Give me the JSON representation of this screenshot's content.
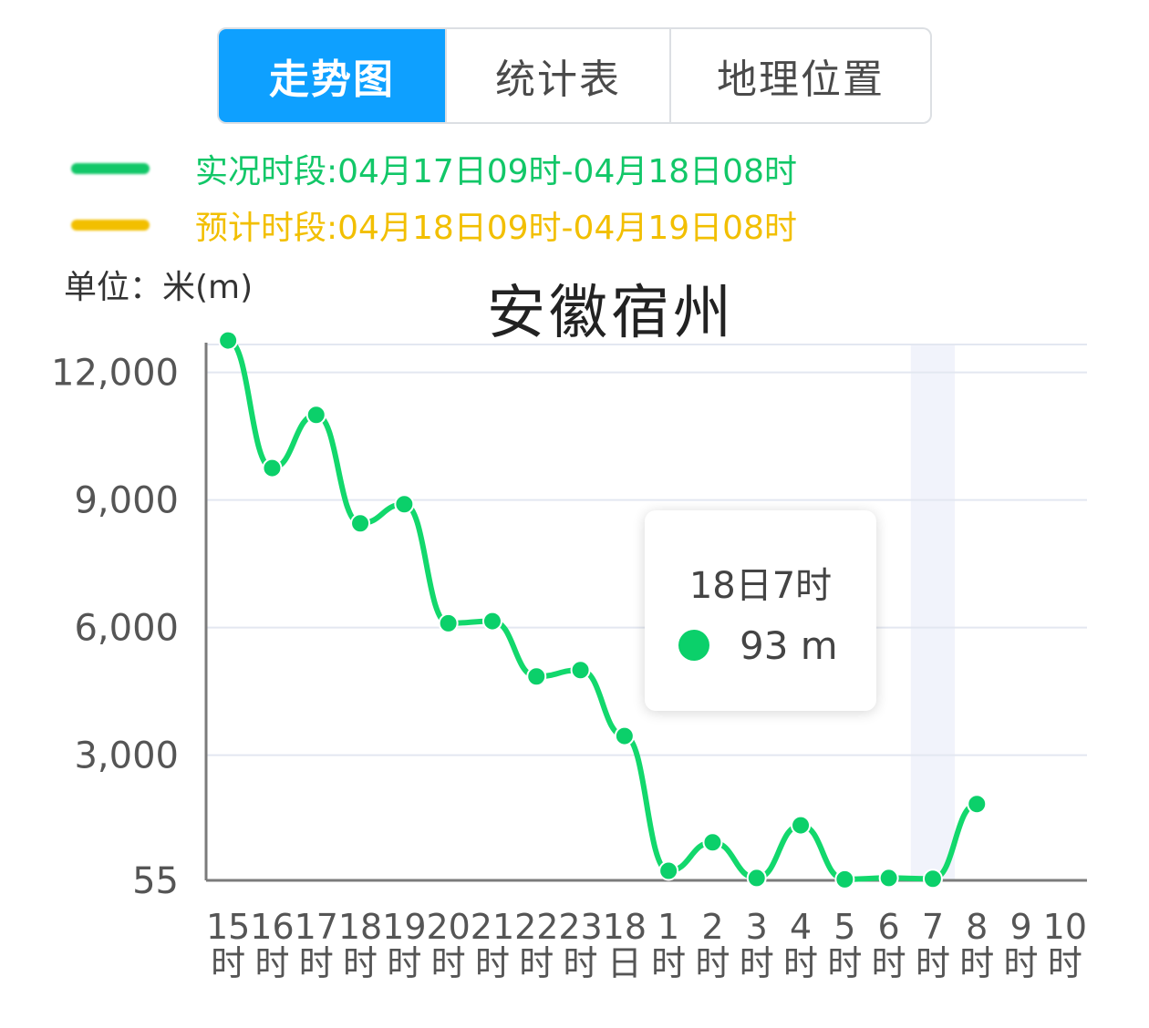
{
  "tabs": [
    {
      "label": "走势图",
      "active": true
    },
    {
      "label": "统计表",
      "active": false
    },
    {
      "label": "地理位置",
      "active": false
    }
  ],
  "legend": {
    "observed": {
      "text": "实况时段:04月17日09时-04月18日08时",
      "color": "#12c768"
    },
    "forecast": {
      "text": "预计时段:04月18日09时-04月19日08时",
      "color": "#f2bf00"
    }
  },
  "unit_label": "单位：米(m)",
  "tooltip": {
    "time": "18日7时",
    "value": "93 m"
  },
  "chart_data": {
    "type": "line",
    "title": "安徽宿州",
    "ylabel": "单位：米(m)",
    "ylim": [
      55,
      12800
    ],
    "yticks": [
      55,
      3000,
      6000,
      9000,
      12000
    ],
    "ytick_labels": [
      "55",
      "3,000",
      "6,000",
      "9,000",
      "12,000"
    ],
    "categories": [
      "15时",
      "16时",
      "17时",
      "18时",
      "19时",
      "20时",
      "21时",
      "22时",
      "23时",
      "18日",
      "1时",
      "2时",
      "3时",
      "4时",
      "5时",
      "6时",
      "7时",
      "8时",
      "9时",
      "10时"
    ],
    "series": [
      {
        "name": "实况时段",
        "color": "#12d86c",
        "values": [
          12750,
          9750,
          11000,
          8450,
          8900,
          6100,
          6150,
          4850,
          5000,
          3450,
          280,
          950,
          110,
          1350,
          80,
          110,
          93,
          1850,
          null,
          null
        ]
      }
    ],
    "highlight_category": "7时",
    "grid": true
  }
}
